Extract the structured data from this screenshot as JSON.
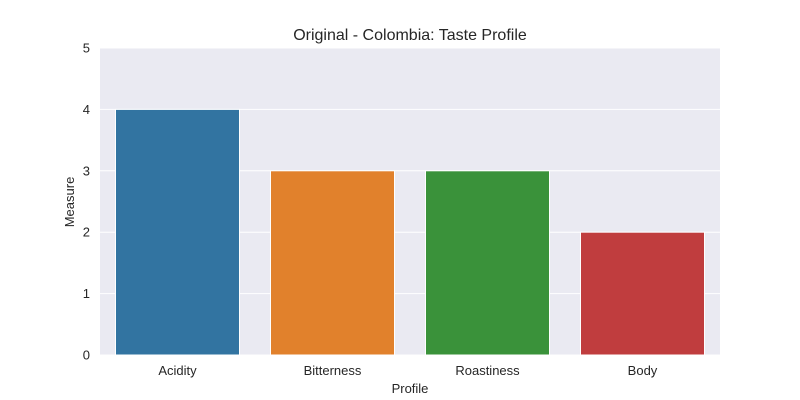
{
  "chart_data": {
    "type": "bar",
    "title": "Original - Colombia: Taste Profile",
    "xlabel": "Profile",
    "ylabel": "Measure",
    "categories": [
      "Acidity",
      "Bitterness",
      "Roastiness",
      "Body"
    ],
    "values": [
      4,
      3,
      3,
      2
    ],
    "colors": [
      "#3274a1",
      "#e1812c",
      "#3a923a",
      "#c03d3e"
    ],
    "ylim": [
      0,
      5
    ],
    "yticks": [
      "0",
      "1",
      "2",
      "3",
      "4",
      "5"
    ],
    "grid": true,
    "background_color": "#eaeaf2",
    "grid_color": "#ffffff"
  }
}
